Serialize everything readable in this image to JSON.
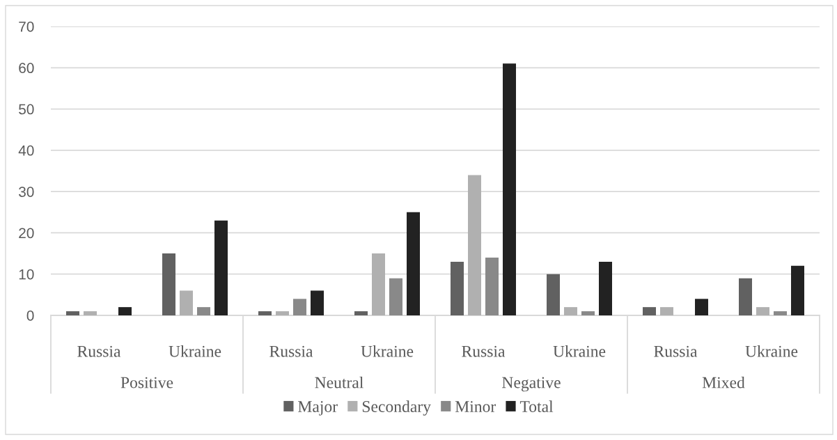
{
  "chart_data": {
    "type": "bar",
    "categories": [
      "Russia",
      "Ukraine",
      "Russia",
      "Ukraine",
      "Russia",
      "Ukraine",
      "Russia",
      "Ukraine"
    ],
    "annotations": [
      "Positive",
      "Neutral",
      "Negative",
      "Mixed"
    ],
    "series": [
      {
        "name": "Major",
        "color": "#616161",
        "values": [
          1,
          15,
          1,
          1,
          13,
          10,
          2,
          9
        ]
      },
      {
        "name": "Secondary",
        "color": "#b0b0b0",
        "values": [
          1,
          6,
          1,
          15,
          34,
          2,
          2,
          2
        ]
      },
      {
        "name": "Minor",
        "color": "#898989",
        "values": [
          0,
          2,
          4,
          9,
          14,
          1,
          0,
          1
        ]
      },
      {
        "name": "Total",
        "color": "#222222",
        "values": [
          2,
          23,
          6,
          25,
          61,
          13,
          4,
          12
        ]
      }
    ],
    "ylim": [
      0,
      70
    ],
    "yticks": [
      0,
      10,
      20,
      30,
      40,
      50,
      60,
      70
    ],
    "grid": "y",
    "legend": "bottom"
  }
}
